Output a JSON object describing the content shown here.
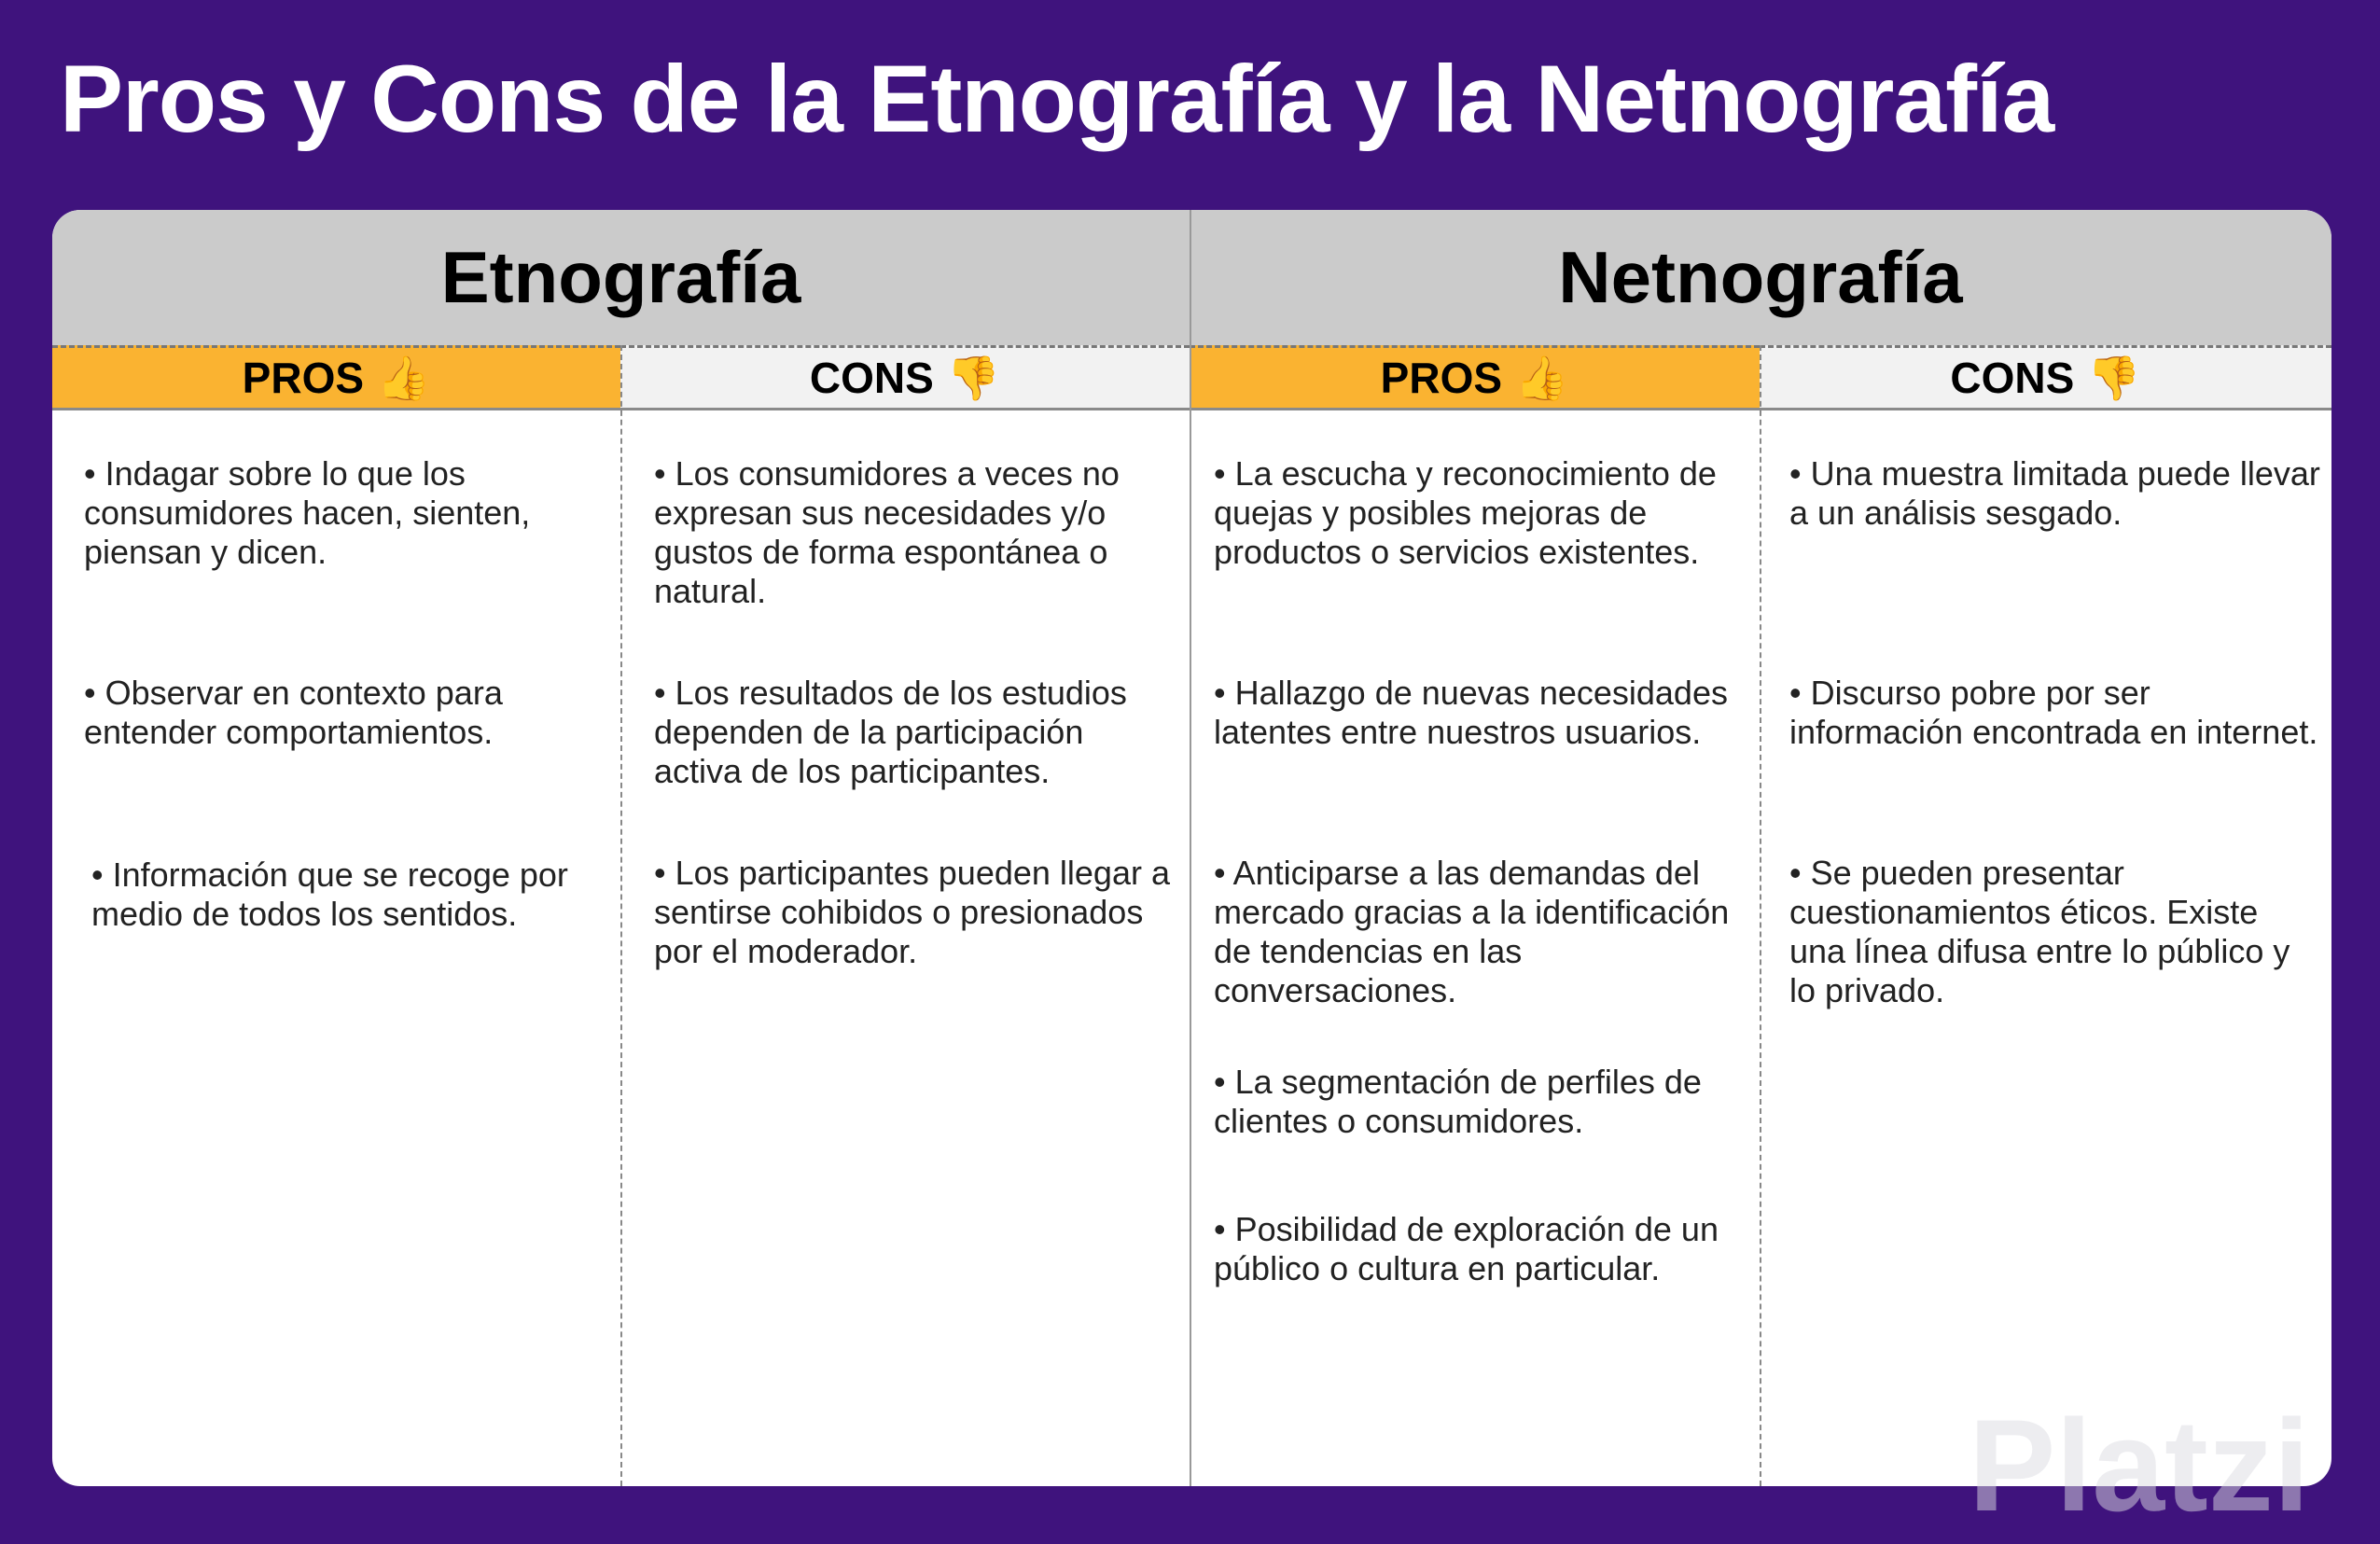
{
  "title": "Pros y Cons de la Etnografía y la Netnografía",
  "watermark": "Platzi",
  "colors": {
    "background": "#3f137d",
    "pros": "#fab331",
    "cons": "#f2f2f2",
    "header": "#cbcbcb"
  },
  "groups": [
    {
      "name": "Etnografía",
      "pros_label": "PROS",
      "cons_label": "CONS",
      "pros": [
        "• Indagar sobre lo que los consumidores hacen, sienten, piensan y dicen.",
        "• Observar en contexto para entender comportamientos.",
        "• Información que se recoge por medio de todos los sentidos."
      ],
      "cons": [
        "• Los consumidores a veces no expresan sus necesidades y/o gustos de forma espontánea o natural.",
        "• Los resultados de los estudios dependen de la participación activa de los participantes.",
        "• Los participantes pueden llegar a sentirse cohibidos o presionados por el moderador."
      ]
    },
    {
      "name": "Netnografía",
      "pros_label": "PROS",
      "cons_label": "CONS",
      "pros": [
        "• La escucha y reconocimiento de quejas y posibles mejoras de productos o servicios existentes.",
        "• Hallazgo de nuevas necesidades latentes entre nuestros usuarios.",
        "• Anticiparse a las demandas del mercado gracias a la identificación de tendencias en las conversaciones.",
        "• La segmentación de perfiles de clientes o consumidores.",
        "• Posibilidad de exploración de un público o cultura en particular."
      ],
      "cons": [
        "• Una muestra limitada puede llevar a un análisis sesgado.",
        "• Discurso pobre por ser información encontrada en internet.",
        "• Se pueden presentar cuestionamientos éticos. Existe una línea difusa entre lo público y lo privado."
      ]
    }
  ],
  "icons": {
    "pros": "thumbs-up-icon",
    "cons": "thumbs-down-icon"
  }
}
